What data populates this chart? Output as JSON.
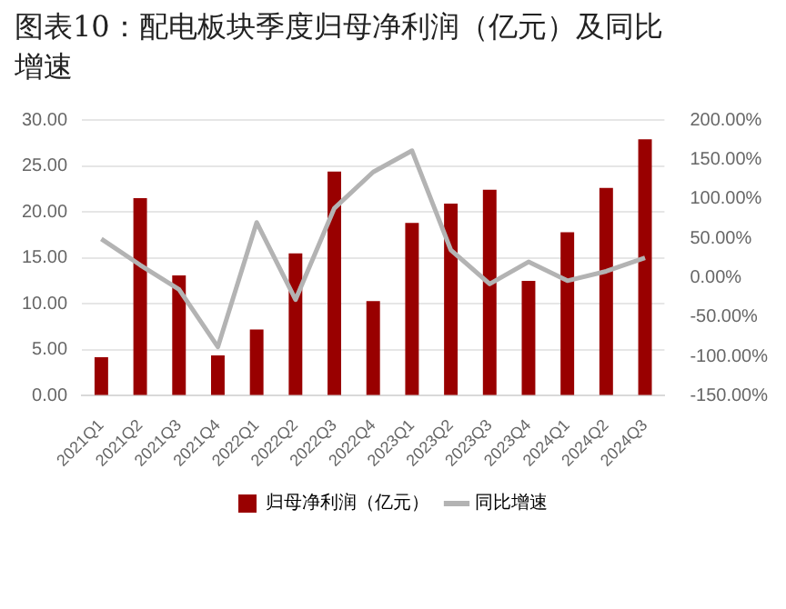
{
  "chart_data": {
    "type": "bar",
    "title": "图表10：配电板块季度归母净利润（亿元）及同比增速",
    "categories": [
      "2021Q1",
      "2021Q2",
      "2021Q3",
      "2021Q4",
      "2022Q1",
      "2022Q2",
      "2022Q3",
      "2022Q4",
      "2023Q1",
      "2023Q2",
      "2023Q3",
      "2023Q4",
      "2024Q1",
      "2024Q2",
      "2024Q3"
    ],
    "series": [
      {
        "name": "归母净利润（亿元）",
        "color": "#990000",
        "values": [
          4.2,
          21.5,
          13.1,
          4.4,
          7.2,
          15.5,
          24.4,
          10.3,
          18.8,
          20.9,
          22.4,
          12.5,
          17.8,
          22.6,
          27.9
        ]
      },
      {
        "name": "同比增速",
        "type": "line",
        "axis": "y2",
        "color": "#b3b3b3",
        "values": [
          49,
          16,
          -15,
          -88,
          70,
          -28,
          88,
          134,
          161,
          35,
          -8,
          20,
          -4,
          8,
          25
        ]
      }
    ],
    "ylim": [
      0,
      30
    ],
    "yticks": [
      {
        "value": 0,
        "label": "0.00"
      },
      {
        "value": 5,
        "label": "5.00"
      },
      {
        "value": 10,
        "label": "10.00"
      },
      {
        "value": 15,
        "label": "15.00"
      },
      {
        "value": 20,
        "label": "20.00"
      },
      {
        "value": 25,
        "label": "25.00"
      },
      {
        "value": 30,
        "label": "30.00"
      }
    ],
    "y2lim": [
      -150,
      200
    ],
    "y2ticks": [
      {
        "value": -150,
        "label": "-150.00%"
      },
      {
        "value": -100,
        "label": "-100.00%"
      },
      {
        "value": -50,
        "label": "-50.00%"
      },
      {
        "value": 0,
        "label": "0.00%"
      },
      {
        "value": 50,
        "label": "50.00%"
      },
      {
        "value": 100,
        "label": "100.00%"
      },
      {
        "value": 150,
        "label": "150.00%"
      },
      {
        "value": 200,
        "label": "200.00%"
      }
    ],
    "grid": "y",
    "legend": "bottom",
    "marker": "none"
  }
}
